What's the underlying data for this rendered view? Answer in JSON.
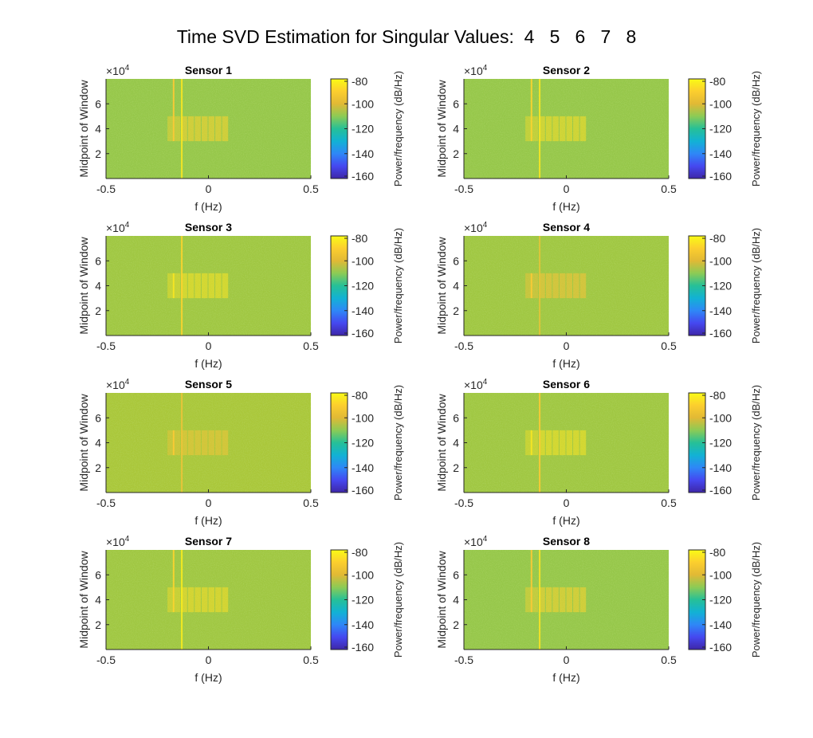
{
  "figure": {
    "title": "Time SVD Estimation for Singular Values:  4   5   6   7   8"
  },
  "chart_data": [
    {
      "type": "heatmap",
      "title": "Sensor 1",
      "xlabel": "f (Hz)",
      "ylabel": "Midpoint of Window",
      "xlim": [
        -0.5,
        0.5
      ],
      "ylim": [
        0,
        80000
      ],
      "x_ticks": [
        "-0.5",
        "0",
        "0.5"
      ],
      "y_ticks": [
        "2",
        "4",
        "6"
      ],
      "y_exponent": "×10",
      "y_exponent_power": "4",
      "colorbar": {
        "label": "Power/frequency (dB/Hz)",
        "ticks": [
          "-80",
          "-100",
          "-120",
          "-140",
          "-160"
        ],
        "clim": [
          -160,
          -80
        ]
      },
      "features": {
        "background_db": -105,
        "burst_freq_range": [
          -0.2,
          0.1
        ],
        "burst_time_range": [
          30000,
          50000
        ],
        "burst_db": -88,
        "lines": [
          {
            "freq": -0.17,
            "time_range": [
              30000,
              80000
            ],
            "db": -90
          },
          {
            "freq": -0.13,
            "time_range": [
              0,
              80000
            ],
            "db": -84
          }
        ]
      }
    },
    {
      "type": "heatmap",
      "title": "Sensor 2",
      "xlabel": "f (Hz)",
      "ylabel": "Midpoint of Window",
      "xlim": [
        -0.5,
        0.5
      ],
      "ylim": [
        0,
        80000
      ],
      "x_ticks": [
        "-0.5",
        "0",
        "0.5"
      ],
      "y_ticks": [
        "2",
        "4",
        "6"
      ],
      "y_exponent": "×10",
      "y_exponent_power": "4",
      "colorbar": {
        "label": "Power/frequency (dB/Hz)",
        "ticks": [
          "-80",
          "-100",
          "-120",
          "-140",
          "-160"
        ],
        "clim": [
          -160,
          -80
        ]
      },
      "features": {
        "background_db": -105,
        "burst_freq_range": [
          -0.2,
          0.1
        ],
        "burst_time_range": [
          30000,
          50000
        ],
        "burst_db": -86,
        "lines": [
          {
            "freq": -0.17,
            "time_range": [
              30000,
              80000
            ],
            "db": -88
          },
          {
            "freq": -0.13,
            "time_range": [
              0,
              80000
            ],
            "db": -84
          }
        ]
      }
    },
    {
      "type": "heatmap",
      "title": "Sensor 3",
      "xlabel": "f (Hz)",
      "ylabel": "Midpoint of Window",
      "xlim": [
        -0.5,
        0.5
      ],
      "ylim": [
        0,
        80000
      ],
      "x_ticks": [
        "-0.5",
        "0",
        "0.5"
      ],
      "y_ticks": [
        "2",
        "4",
        "6"
      ],
      "y_exponent": "×10",
      "y_exponent_power": "4",
      "colorbar": {
        "label": "Power/frequency (dB/Hz)",
        "ticks": [
          "-80",
          "-100",
          "-120",
          "-140",
          "-160"
        ],
        "clim": [
          -160,
          -80
        ]
      },
      "features": {
        "background_db": -104,
        "burst_freq_range": [
          -0.2,
          0.1
        ],
        "burst_time_range": [
          30000,
          50000
        ],
        "burst_db": -85,
        "lines": [
          {
            "freq": -0.17,
            "time_range": [
              30000,
              50000
            ],
            "db": -84
          },
          {
            "freq": -0.13,
            "time_range": [
              0,
              80000
            ],
            "db": -88
          }
        ]
      }
    },
    {
      "type": "heatmap",
      "title": "Sensor 4",
      "xlabel": "f (Hz)",
      "ylabel": "Midpoint of Window",
      "xlim": [
        -0.5,
        0.5
      ],
      "ylim": [
        0,
        80000
      ],
      "x_ticks": [
        "-0.5",
        "0",
        "0.5"
      ],
      "y_ticks": [
        "2",
        "4",
        "6"
      ],
      "y_exponent": "×10",
      "y_exponent_power": "4",
      "colorbar": {
        "label": "Power/frequency (dB/Hz)",
        "ticks": [
          "-80",
          "-100",
          "-120",
          "-140",
          "-160"
        ],
        "clim": [
          -160,
          -80
        ]
      },
      "features": {
        "background_db": -104,
        "burst_freq_range": [
          -0.2,
          0.1
        ],
        "burst_time_range": [
          30000,
          50000
        ],
        "burst_db": -92,
        "lines": [
          {
            "freq": -0.17,
            "time_range": [
              30000,
              50000
            ],
            "db": -90
          },
          {
            "freq": -0.13,
            "time_range": [
              0,
              80000
            ],
            "db": -95
          }
        ]
      }
    },
    {
      "type": "heatmap",
      "title": "Sensor 5",
      "xlabel": "f (Hz)",
      "ylabel": "Midpoint of Window",
      "xlim": [
        -0.5,
        0.5
      ],
      "ylim": [
        0,
        80000
      ],
      "x_ticks": [
        "-0.5",
        "0",
        "0.5"
      ],
      "y_ticks": [
        "2",
        "4",
        "6"
      ],
      "y_exponent": "×10",
      "y_exponent_power": "4",
      "colorbar": {
        "label": "Power/frequency (dB/Hz)",
        "ticks": [
          "-80",
          "-100",
          "-120",
          "-140",
          "-160"
        ],
        "clim": [
          -160,
          -80
        ]
      },
      "features": {
        "background_db": -103,
        "burst_freq_range": [
          -0.2,
          0.1
        ],
        "burst_time_range": [
          30000,
          50000
        ],
        "burst_db": -93,
        "lines": [
          {
            "freq": -0.17,
            "time_range": [
              30000,
              50000
            ],
            "db": -90
          },
          {
            "freq": -0.13,
            "time_range": [
              0,
              80000
            ],
            "db": -94
          }
        ]
      }
    },
    {
      "type": "heatmap",
      "title": "Sensor 6",
      "xlabel": "f (Hz)",
      "ylabel": "Midpoint of Window",
      "xlim": [
        -0.5,
        0.5
      ],
      "ylim": [
        0,
        80000
      ],
      "x_ticks": [
        "-0.5",
        "0",
        "0.5"
      ],
      "y_ticks": [
        "2",
        "4",
        "6"
      ],
      "y_exponent": "×10",
      "y_exponent_power": "4",
      "colorbar": {
        "label": "Power/frequency (dB/Hz)",
        "ticks": [
          "-80",
          "-100",
          "-120",
          "-140",
          "-160"
        ],
        "clim": [
          -160,
          -80
        ]
      },
      "features": {
        "background_db": -104,
        "burst_freq_range": [
          -0.2,
          0.1
        ],
        "burst_time_range": [
          30000,
          50000
        ],
        "burst_db": -85,
        "lines": [
          {
            "freq": -0.17,
            "time_range": [
              30000,
              50000
            ],
            "db": -84
          },
          {
            "freq": -0.13,
            "time_range": [
              0,
              80000
            ],
            "db": -90
          }
        ]
      }
    },
    {
      "type": "heatmap",
      "title": "Sensor 7",
      "xlabel": "f (Hz)",
      "ylabel": "Midpoint of Window",
      "xlim": [
        -0.5,
        0.5
      ],
      "ylim": [
        0,
        80000
      ],
      "x_ticks": [
        "-0.5",
        "0",
        "0.5"
      ],
      "y_ticks": [
        "2",
        "4",
        "6"
      ],
      "y_exponent": "×10",
      "y_exponent_power": "4",
      "colorbar": {
        "label": "Power/frequency (dB/Hz)",
        "ticks": [
          "-80",
          "-100",
          "-120",
          "-140",
          "-160"
        ],
        "clim": [
          -160,
          -80
        ]
      },
      "features": {
        "background_db": -104,
        "burst_freq_range": [
          -0.2,
          0.1
        ],
        "burst_time_range": [
          30000,
          50000
        ],
        "burst_db": -86,
        "lines": [
          {
            "freq": -0.17,
            "time_range": [
              30000,
              80000
            ],
            "db": -88
          },
          {
            "freq": -0.13,
            "time_range": [
              0,
              80000
            ],
            "db": -83
          }
        ]
      }
    },
    {
      "type": "heatmap",
      "title": "Sensor 8",
      "xlabel": "f (Hz)",
      "ylabel": "Midpoint of Window",
      "xlim": [
        -0.5,
        0.5
      ],
      "ylim": [
        0,
        80000
      ],
      "x_ticks": [
        "-0.5",
        "0",
        "0.5"
      ],
      "y_ticks": [
        "2",
        "4",
        "6"
      ],
      "y_exponent": "×10",
      "y_exponent_power": "4",
      "colorbar": {
        "label": "Power/frequency (dB/Hz)",
        "ticks": [
          "-80",
          "-100",
          "-120",
          "-140",
          "-160"
        ],
        "clim": [
          -160,
          -80
        ]
      },
      "features": {
        "background_db": -105,
        "burst_freq_range": [
          -0.2,
          0.1
        ],
        "burst_time_range": [
          30000,
          50000
        ],
        "burst_db": -88,
        "lines": [
          {
            "freq": -0.17,
            "time_range": [
              30000,
              80000
            ],
            "db": -90
          },
          {
            "freq": -0.13,
            "time_range": [
              0,
              80000
            ],
            "db": -85
          }
        ]
      }
    }
  ]
}
